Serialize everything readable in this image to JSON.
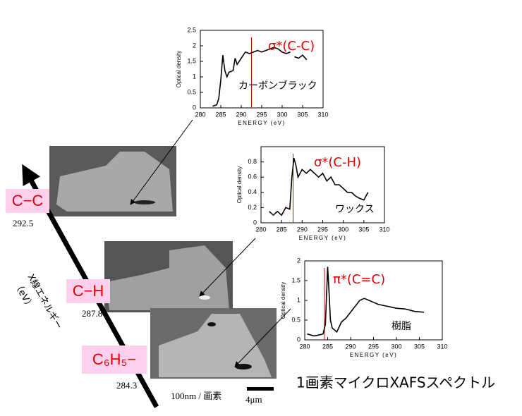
{
  "chart_data": [
    {
      "type": "line",
      "xlabel": "ENERGY (eV)",
      "ylabel": "Optical density",
      "xlim": [
        280,
        310
      ],
      "xticks": [
        280,
        285,
        290,
        295,
        300,
        305,
        310
      ],
      "ylim": [
        0,
        2.5
      ],
      "yticks": [
        0,
        0.5,
        1,
        1.5,
        2,
        2.5
      ],
      "vline": 292.5,
      "vline_color": "#e00000",
      "peak_label": "σ*(C-C)",
      "sample_label": "カーボンブラック",
      "x": [
        283,
        284,
        284.5,
        285,
        285.5,
        286,
        286.5,
        287,
        288,
        288.5,
        289,
        290,
        291,
        292,
        293,
        294,
        295,
        296,
        298,
        299,
        300,
        301,
        302,
        302.5,
        303,
        304,
        305,
        306
      ],
      "series": [
        {
          "color": "#000000",
          "values": [
            0.05,
            0.1,
            0.3,
            0.9,
            1.7,
            1.2,
            1.0,
            1.15,
            1.2,
            1.6,
            1.4,
            1.6,
            1.8,
            1.75,
            1.8,
            1.85,
            1.8,
            1.85,
            1.95,
            1.9,
            1.8,
            1.75,
            1.8,
            null,
            1.65,
            1.6,
            1.7,
            1.55
          ]
        }
      ]
    },
    {
      "type": "line",
      "xlabel": "ENERGY (eV)",
      "ylabel": "Optical density",
      "xlim": [
        280,
        310
      ],
      "xticks": [
        280,
        285,
        290,
        295,
        300,
        305,
        310
      ],
      "ylim": [
        0,
        1
      ],
      "yticks": [
        0,
        0.2,
        0.4,
        0.6,
        0.8
      ],
      "vline": 287.8,
      "vline_color": "#e00000",
      "peak_label": "σ*(C-H)",
      "sample_label": "ワックス",
      "x": [
        282,
        283,
        284,
        285,
        286,
        287,
        287.5,
        288,
        288.5,
        289,
        290,
        291,
        292,
        293,
        294,
        295,
        296,
        297,
        298,
        299,
        300,
        301,
        302,
        303,
        304,
        305,
        306
      ],
      "series": [
        {
          "color": "#000000",
          "values": [
            0.15,
            0.1,
            0.15,
            0.1,
            0.2,
            0.18,
            0.6,
            0.85,
            0.75,
            0.6,
            0.7,
            0.65,
            0.7,
            0.65,
            0.6,
            0.65,
            0.55,
            0.6,
            0.5,
            0.5,
            0.45,
            0.4,
            0.4,
            0.35,
            0.32,
            0.3,
            0.4
          ]
        }
      ]
    },
    {
      "type": "line",
      "xlabel": "ENERGY (eV)",
      "ylabel": "Optical density",
      "xlim": [
        280,
        310
      ],
      "xticks": [
        280,
        285,
        290,
        295,
        300,
        305,
        310
      ],
      "ylim": [
        0,
        2
      ],
      "yticks": [
        0,
        0.5,
        1,
        1.5,
        2
      ],
      "vline": 284.3,
      "vline_color": "#e00000",
      "peak_label": "π*(C=C)",
      "sample_label": "樹脂",
      "x": [
        280.5,
        282,
        283,
        284,
        284.5,
        285,
        285.3,
        285.6,
        286,
        287,
        288,
        289,
        290,
        291,
        292,
        293,
        294,
        295,
        296,
        298,
        300,
        302,
        304,
        306
      ],
      "series": [
        {
          "color": "#000000",
          "values": [
            0.15,
            0.1,
            0.12,
            0.15,
            0.4,
            1.85,
            1.2,
            0.5,
            0.3,
            0.2,
            0.45,
            0.55,
            0.7,
            0.85,
            1.0,
            1.05,
            1.0,
            0.95,
            0.9,
            0.85,
            0.8,
            0.78,
            0.72,
            0.7
          ]
        }
      ]
    }
  ],
  "labels": {
    "cc": "C−C",
    "cc_energy": "292.5",
    "ch": "C−H",
    "ch_energy": "287.8",
    "c6h5": "C₆H₅−",
    "c6h5_energy": "284.3",
    "axis": "X線エネルギー",
    "axis_unit": "（eV）",
    "pixel": "100nm / 画素",
    "scale": "4μm",
    "title": "1画素マイクロXAFSスペクトル"
  }
}
